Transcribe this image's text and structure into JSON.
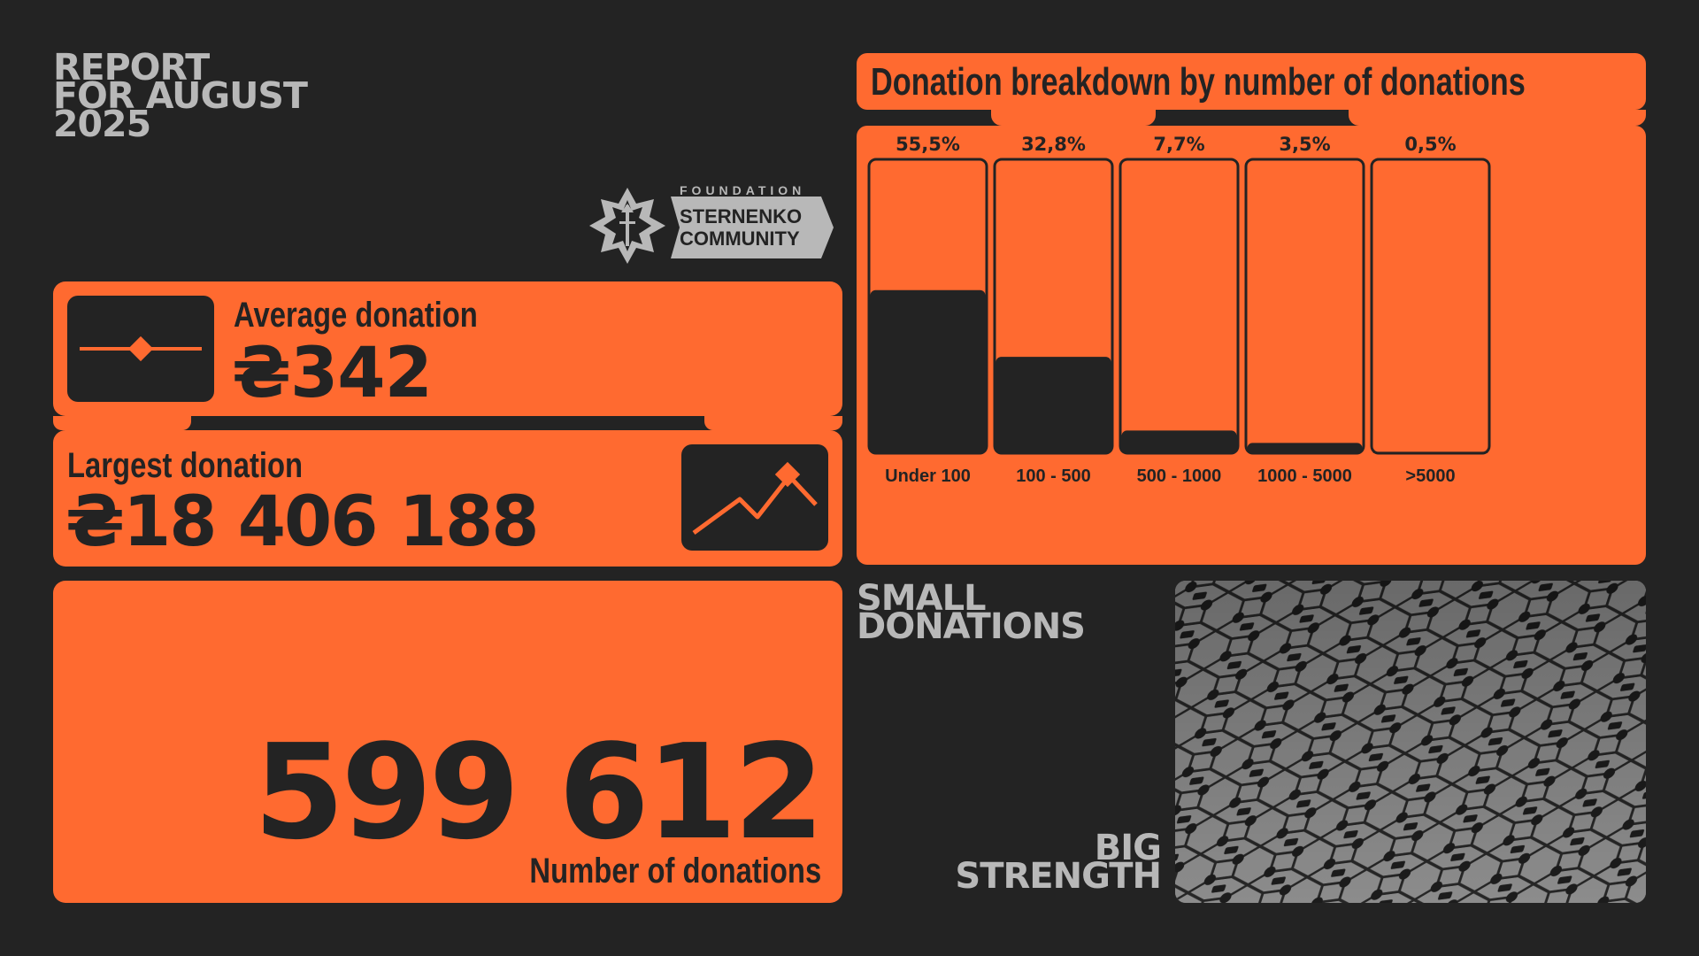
{
  "report": {
    "title_lines": [
      "REPORT",
      "FOR AUGUST",
      "2025"
    ]
  },
  "logo": {
    "foundation": "FOUNDATION",
    "line1": "STERNENKO",
    "line2": "COMMUNITY"
  },
  "average": {
    "label": "Average donation",
    "value": "₴342",
    "icon": "slider-diamond-icon"
  },
  "largest": {
    "label": "Largest donation",
    "value": "₴18 406 188",
    "icon": "trend-up-arrow-icon"
  },
  "count": {
    "value": "599 612",
    "label": "Number of donations"
  },
  "slogan": {
    "top_lines": [
      "SMALL",
      "DONATIONS"
    ],
    "bottom_lines": [
      "BIG",
      "STRENGTH"
    ]
  },
  "colors": {
    "accent": "#ff6a30",
    "background": "#232323",
    "muted_text": "#b8b8b8"
  },
  "chart_data": {
    "type": "bar",
    "title": "Donation breakdown by number of donations",
    "categories": [
      "Under 100",
      "100 - 500",
      "500 - 1000",
      "1000 - 5000",
      ">5000"
    ],
    "values": [
      55.5,
      32.8,
      7.7,
      3.5,
      0.5
    ],
    "value_labels": [
      "55,5%",
      "32,8%",
      "7,7%",
      "3,5%",
      "0,5%"
    ],
    "ylim": [
      0,
      100
    ],
    "xlabel": "",
    "ylabel": ""
  }
}
